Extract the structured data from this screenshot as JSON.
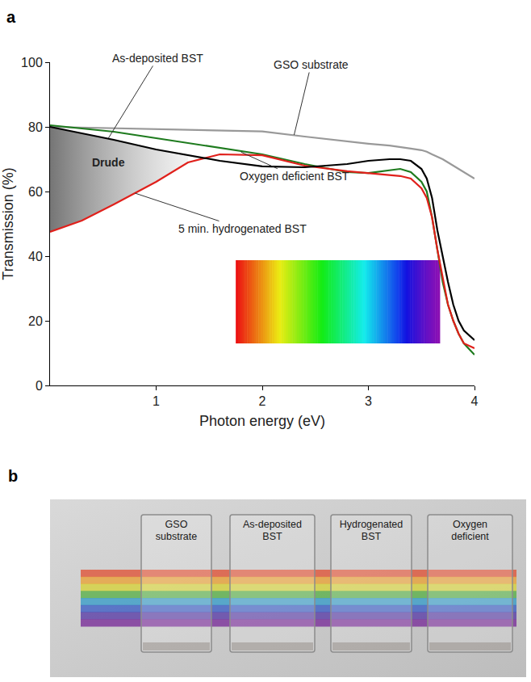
{
  "chart_data": {
    "type": "line",
    "title": "a",
    "x_label": "Photon energy (eV)",
    "y_label": "Transmission (%)",
    "x": [
      0,
      0.3,
      0.6,
      1.0,
      1.3,
      1.6,
      2.0,
      2.4,
      2.8,
      3.0,
      3.2,
      3.3,
      3.4,
      3.5,
      3.55,
      3.6,
      3.65,
      3.7,
      3.75,
      3.8,
      3.85,
      3.9,
      4.0
    ],
    "series": [
      {
        "name": "GSO substrate",
        "color": "#999999",
        "values": [
          80,
          79.8,
          79.6,
          79.4,
          79.2,
          79,
          78.6,
          77,
          75.5,
          74.8,
          74.2,
          73.8,
          73.3,
          72.8,
          72.3,
          71.5,
          70.8,
          70,
          69,
          68,
          67,
          66,
          64
        ]
      },
      {
        "name": "As-deposited BST",
        "color": "#000000",
        "values": [
          80,
          78,
          76,
          73,
          71.2,
          69.5,
          67.8,
          67.5,
          68.5,
          69.5,
          70,
          70,
          69.5,
          67,
          64,
          58,
          48,
          40,
          32,
          25,
          20,
          17,
          14
        ]
      },
      {
        "name": "Oxygen deficient BST",
        "color": "#1e7b1e",
        "values": [
          80.5,
          79.5,
          78.5,
          76.5,
          75,
          73.5,
          71.5,
          68.5,
          66,
          65.7,
          66.5,
          67,
          66,
          63,
          60,
          52,
          42,
          32,
          25,
          20,
          16,
          13,
          9.5
        ]
      },
      {
        "name": "5 min. hydrogenated BST",
        "color": "#e0201b",
        "values": [
          47.5,
          51,
          56,
          63,
          69,
          71.5,
          71.2,
          68,
          66.3,
          65.7,
          65,
          64.8,
          64,
          61,
          58,
          52,
          42,
          33,
          25,
          20,
          16,
          13,
          11.5
        ]
      }
    ],
    "xlim": [
      0,
      4
    ],
    "xticks": [
      1,
      2,
      3,
      4
    ],
    "ylim": [
      0,
      100
    ],
    "yticks": [
      0,
      20,
      40,
      60,
      80,
      100
    ],
    "grid": false,
    "annotations": [
      {
        "text": "As-deposited BST",
        "x": 0.55,
        "y": 76.5
      },
      {
        "text": "GSO substrate",
        "x": 2.3,
        "y": 77.5
      },
      {
        "text": "Oxygen deficient BST",
        "x": 1.8,
        "y": 72.2
      },
      {
        "text": "5 min. hydrogenated BST",
        "x": 0.8,
        "y": 59.5
      },
      {
        "text": "Drude",
        "x": 0.55,
        "y": 69
      }
    ]
  },
  "photo": {
    "panel": "b",
    "samples": [
      "GSO substrate",
      "As-deposited BST",
      "Hydrogenated BST",
      "Oxygen deficient"
    ]
  }
}
